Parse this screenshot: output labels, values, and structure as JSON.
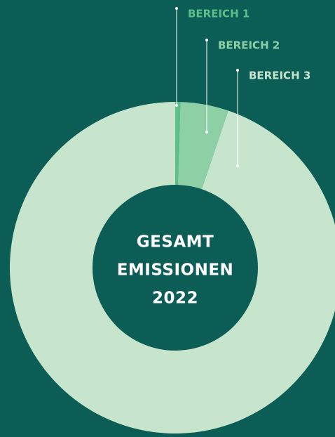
{
  "chart_data": {
    "type": "donut",
    "categories": [
      "BEREICH 1",
      "BEREICH 2",
      "BEREICH 3"
    ],
    "values": [
      0.5,
      4.7,
      94.8
    ],
    "colors": [
      "#5dbf8a",
      "#8dd0a6",
      "#c6e5cc"
    ],
    "center_label": [
      "GESAMT",
      "EMISSIONEN",
      "2022"
    ]
  }
}
